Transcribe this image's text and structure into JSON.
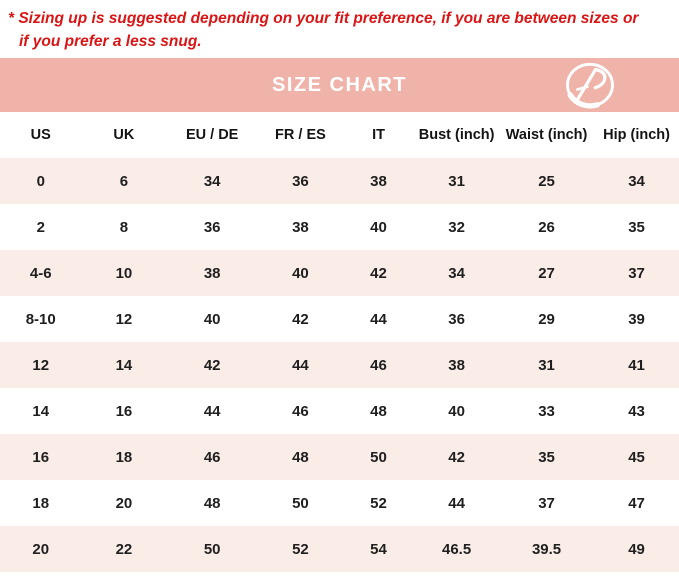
{
  "note": {
    "line1": "* Sizing up is suggested depending on your fit preference, if you are between sizes or",
    "line2": "if you prefer a less snug."
  },
  "banner": {
    "title": "SIZE CHART",
    "logo_icon": "brand-swoosh-monogram-icon"
  },
  "colors": {
    "note_red": "#d91515",
    "banner_salmon": "#f0b3aa",
    "banner_text": "#ffffff",
    "row_pink": "#faece7",
    "row_white": "#ffffff",
    "cell_text": "#1f1f1f"
  },
  "chart_data": {
    "type": "table",
    "title": "SIZE CHART",
    "columns": [
      "US",
      "UK",
      "EU / DE",
      "FR / ES",
      "IT",
      "Bust (inch)",
      "Waist (inch)",
      "Hip (inch)"
    ],
    "rows": [
      [
        "0",
        "6",
        "34",
        "36",
        "38",
        "31",
        "25",
        "34"
      ],
      [
        "2",
        "8",
        "36",
        "38",
        "40",
        "32",
        "26",
        "35"
      ],
      [
        "4-6",
        "10",
        "38",
        "40",
        "42",
        "34",
        "27",
        "37"
      ],
      [
        "8-10",
        "12",
        "40",
        "42",
        "44",
        "36",
        "29",
        "39"
      ],
      [
        "12",
        "14",
        "42",
        "44",
        "46",
        "38",
        "31",
        "41"
      ],
      [
        "14",
        "16",
        "44",
        "46",
        "48",
        "40",
        "33",
        "43"
      ],
      [
        "16",
        "18",
        "46",
        "48",
        "50",
        "42",
        "35",
        "45"
      ],
      [
        "18",
        "20",
        "48",
        "50",
        "52",
        "44",
        "37",
        "47"
      ],
      [
        "20",
        "22",
        "50",
        "52",
        "54",
        "46.5",
        "39.5",
        "49"
      ]
    ]
  }
}
